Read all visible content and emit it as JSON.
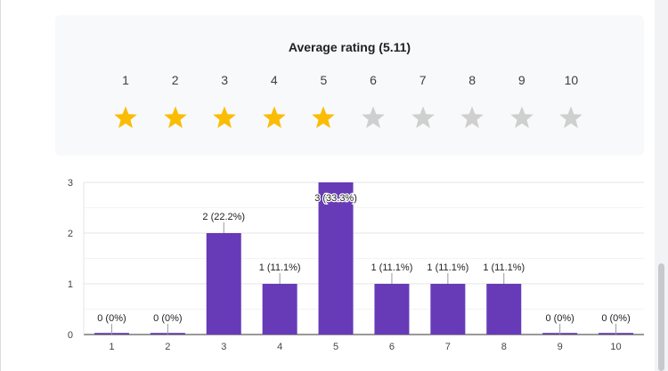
{
  "rating": {
    "title": "Average rating (5.11)",
    "scale": [
      "1",
      "2",
      "3",
      "4",
      "5",
      "6",
      "7",
      "8",
      "9",
      "10"
    ],
    "filled_stars": 5,
    "filled_color": "#fbbc04",
    "empty_color": "#cfcfcf",
    "star_icon": "star-icon"
  },
  "chart_data": {
    "type": "bar",
    "title": "",
    "xlabel": "",
    "ylabel": "",
    "categories": [
      "1",
      "2",
      "3",
      "4",
      "5",
      "6",
      "7",
      "8",
      "9",
      "10"
    ],
    "values": [
      0,
      0,
      2,
      1,
      3,
      1,
      1,
      1,
      0,
      0
    ],
    "data_labels": [
      "0 (0%)",
      "0 (0%)",
      "2 (22.2%)",
      "1 (11.1%)",
      "3 (33.3%)",
      "1 (11.1%)",
      "1 (11.1%)",
      "1 (11.1%)",
      "0 (0%)",
      "0 (0%)"
    ],
    "ylim": [
      0,
      3
    ],
    "yticks": [
      "0",
      "1",
      "2",
      "3"
    ],
    "grid": true,
    "bar_color": "#673ab7"
  }
}
